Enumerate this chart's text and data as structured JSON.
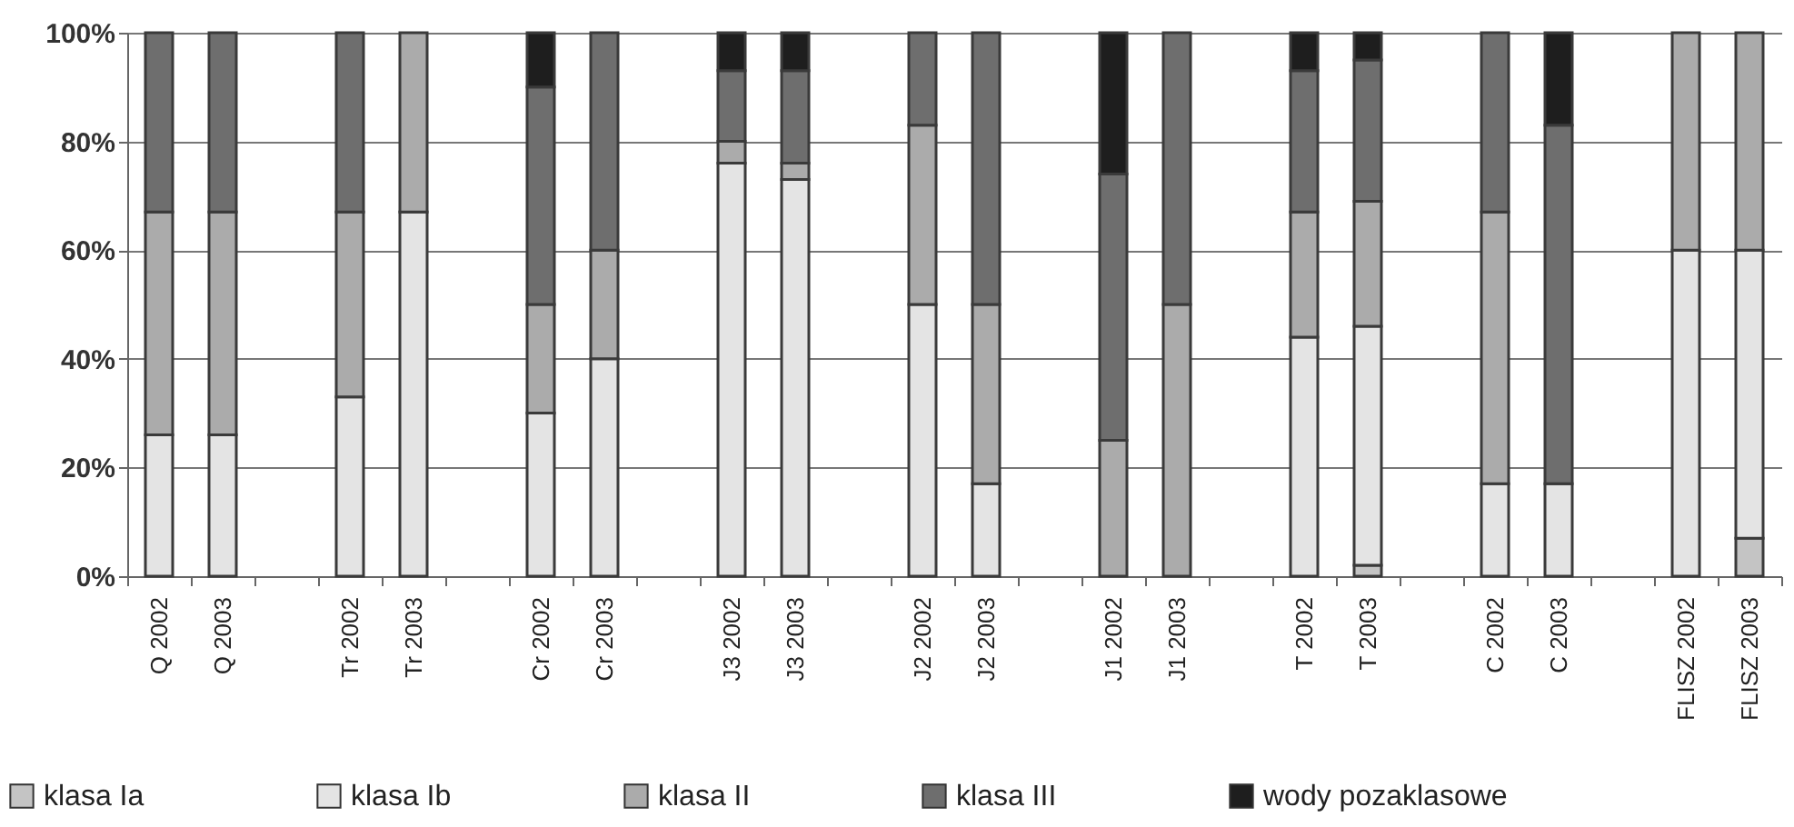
{
  "chart_data": {
    "type": "bar",
    "stacked": true,
    "categories": [
      "Q 2002",
      "Q 2003",
      null,
      "Tr 2002",
      "Tr 2003",
      null,
      "Cr 2002",
      "Cr 2003",
      null,
      "J3 2002",
      "J3 2003",
      null,
      "J2 2002",
      "J2 2003",
      null,
      "J1 2002",
      "J1 2003",
      null,
      "T 2002",
      "T 2003",
      null,
      "C 2002",
      "C 2003",
      null,
      "FLISZ 2002",
      "FLISZ 2003"
    ],
    "series": [
      {
        "name": "klasa Ia",
        "color": "#c4c4c4",
        "values": [
          null,
          null,
          null,
          null,
          null,
          null,
          null,
          null,
          null,
          null,
          null,
          null,
          null,
          null,
          null,
          null,
          null,
          null,
          null,
          2,
          null,
          null,
          null,
          null,
          null,
          7
        ]
      },
      {
        "name": "klasa Ib",
        "color": "#e4e4e4",
        "values": [
          26,
          26,
          null,
          33,
          67,
          null,
          30,
          40,
          null,
          76,
          73,
          null,
          50,
          17,
          null,
          null,
          null,
          null,
          44,
          44,
          null,
          17,
          17,
          null,
          60,
          53
        ]
      },
      {
        "name": "klasa II",
        "color": "#ababab",
        "values": [
          41,
          41,
          null,
          34,
          33,
          null,
          20,
          20,
          null,
          4,
          3,
          null,
          33,
          33,
          null,
          25,
          50,
          null,
          23,
          23,
          null,
          50,
          null,
          null,
          40,
          40
        ]
      },
      {
        "name": "klasa III",
        "color": "#6e6e6e",
        "values": [
          33,
          33,
          null,
          33,
          null,
          null,
          40,
          40,
          null,
          13,
          17,
          null,
          17,
          50,
          null,
          49,
          50,
          null,
          26,
          26,
          null,
          33,
          66,
          null,
          null,
          null
        ]
      },
      {
        "name": "wody pozaklasowe",
        "color": "#1e1e1e",
        "values": [
          null,
          null,
          null,
          null,
          null,
          null,
          10,
          null,
          null,
          7,
          7,
          null,
          null,
          null,
          null,
          26,
          null,
          null,
          7,
          5,
          null,
          null,
          17,
          null,
          null,
          null
        ]
      }
    ],
    "ylim": [
      0,
      100
    ],
    "yticks": [
      {
        "value": 0,
        "label": "0%"
      },
      {
        "value": 20,
        "label": "20%"
      },
      {
        "value": 40,
        "label": "40%"
      },
      {
        "value": 60,
        "label": "60%"
      },
      {
        "value": 80,
        "label": "80%"
      },
      {
        "value": 100,
        "label": "100%"
      }
    ],
    "grid": "y",
    "legend": "bottom"
  }
}
